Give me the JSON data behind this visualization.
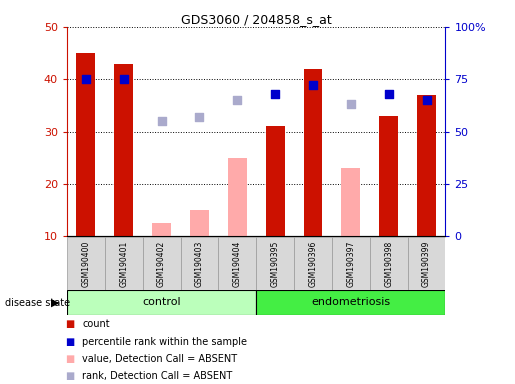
{
  "title": "GDS3060 / 204858_s_at",
  "samples": [
    "GSM190400",
    "GSM190401",
    "GSM190402",
    "GSM190403",
    "GSM190404",
    "GSM190395",
    "GSM190396",
    "GSM190397",
    "GSM190398",
    "GSM190399"
  ],
  "count": [
    45,
    43,
    0,
    0,
    0,
    31,
    42,
    0,
    33,
    37
  ],
  "value_absent": [
    0,
    0,
    12.5,
    15,
    25,
    0,
    0,
    23,
    0,
    0
  ],
  "percentile_rank_right": [
    75,
    75,
    null,
    null,
    null,
    68,
    72,
    null,
    68,
    65
  ],
  "rank_absent_right": [
    null,
    null,
    55,
    57,
    65,
    null,
    null,
    63,
    null,
    null
  ],
  "control_count": 5,
  "endometriosis_count": 5,
  "left_ylim": [
    10,
    50
  ],
  "right_ylim": [
    0,
    100
  ],
  "left_ticks": [
    10,
    20,
    30,
    40,
    50
  ],
  "right_ticks": [
    0,
    25,
    50,
    75,
    100
  ],
  "right_tick_labels": [
    "0",
    "25",
    "50",
    "75",
    "100%"
  ],
  "bar_color_red": "#cc1100",
  "bar_color_pink": "#ffaaaa",
  "dot_color_blue": "#0000cc",
  "dot_color_lightblue": "#aaaacc",
  "label_color_red": "#cc1100",
  "label_color_blue": "#0000cc",
  "group_label_control": "control",
  "group_label_endo": "endometriosis",
  "disease_state_label": "disease state",
  "legend_count": "count",
  "legend_percentile": "percentile rank within the sample",
  "legend_value_absent": "value, Detection Call = ABSENT",
  "legend_rank_absent": "rank, Detection Call = ABSENT",
  "background_plot": "#ffffff",
  "background_xticklabel": "#d8d8d8",
  "background_group_control": "#bbffbb",
  "background_group_endo": "#44ee44"
}
